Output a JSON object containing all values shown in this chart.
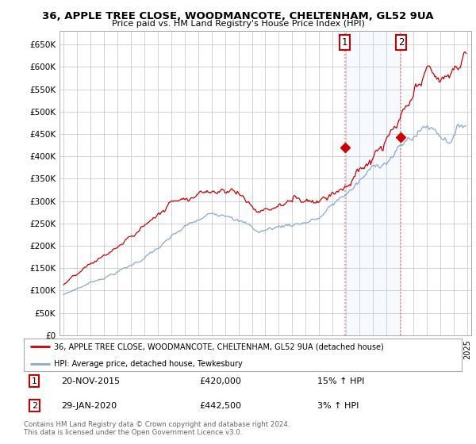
{
  "title": "36, APPLE TREE CLOSE, WOODMANCOTE, CHELTENHAM, GL52 9UA",
  "subtitle": "Price paid vs. HM Land Registry's House Price Index (HPI)",
  "ylabel_ticks": [
    "£0",
    "£50K",
    "£100K",
    "£150K",
    "£200K",
    "£250K",
    "£300K",
    "£350K",
    "£400K",
    "£450K",
    "£500K",
    "£550K",
    "£600K",
    "£650K"
  ],
  "ytick_values": [
    0,
    50000,
    100000,
    150000,
    200000,
    250000,
    300000,
    350000,
    400000,
    450000,
    500000,
    550000,
    600000,
    650000
  ],
  "xlim_start": 1994.7,
  "xlim_end": 2025.3,
  "ylim": [
    0,
    680000
  ],
  "purchase1_year": 2015.9,
  "purchase1_price": 420000,
  "purchase2_year": 2020.08,
  "purchase2_price": 442500,
  "property_line_color": "#cc0000",
  "hpi_line_color": "#88aacc",
  "vline_color": "#ee8888",
  "highlight_fill": "#ddeeff",
  "legend_property": "36, APPLE TREE CLOSE, WOODMANCOTE, CHELTENHAM, GL52 9UA (detached house)",
  "legend_hpi": "HPI: Average price, detached house, Tewkesbury",
  "annotation1_date": "20-NOV-2015",
  "annotation1_price": "£420,000",
  "annotation1_pct": "15% ↑ HPI",
  "annotation2_date": "29-JAN-2020",
  "annotation2_price": "£442,500",
  "annotation2_pct": "3% ↑ HPI",
  "footer": "Contains HM Land Registry data © Crown copyright and database right 2024.\nThis data is licensed under the Open Government Licence v3.0.",
  "background_color": "#ffffff",
  "grid_color": "#cccccc"
}
